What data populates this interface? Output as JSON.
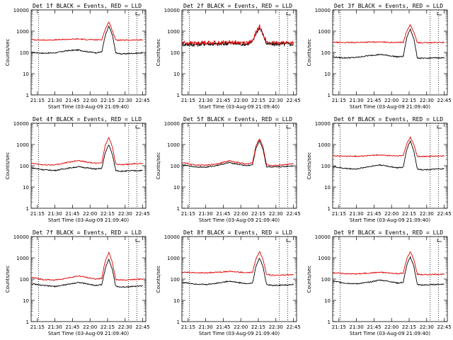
{
  "chart_data": [
    {
      "type": "line",
      "title": "Det 1f BLACK = Events, RED = LLD",
      "xlabel": "Start Time (03-Aug-09 21:09:40)",
      "ylabel": "Counts/sec",
      "yscale": "log",
      "ylim": [
        1,
        10000
      ],
      "x_ticks": [
        "21:15",
        "21:30",
        "21:45",
        "22:00",
        "22:15",
        "22:30",
        "22:45"
      ],
      "y_ticks": [
        "1",
        "10",
        "100",
        "1000",
        "10000"
      ],
      "x": [
        "21:10",
        "21:20",
        "21:30",
        "21:40",
        "21:50",
        "21:57",
        "22:05",
        "22:10",
        "22:13",
        "22:16",
        "22:19",
        "22:22",
        "22:27",
        "22:35",
        "22:45"
      ],
      "series": [
        {
          "name": "Events",
          "color": "#000000",
          "values": [
            100,
            92,
            95,
            120,
            130,
            110,
            96,
            105,
            600,
            1700,
            700,
            95,
            85,
            90,
            95
          ]
        },
        {
          "name": "LLD",
          "color": "#e00000",
          "values": [
            400,
            380,
            390,
            410,
            430,
            405,
            390,
            400,
            1200,
            2800,
            1100,
            380,
            375,
            380,
            390
          ]
        }
      ]
    },
    {
      "type": "line",
      "title": "Det 2f BLACK = Events, RED = LLD",
      "xlabel": "Start Time (03-Aug-09 21:09:40)",
      "ylabel": "Counts/sec",
      "yscale": "log",
      "ylim": [
        1,
        10000
      ],
      "x_ticks": [
        "21:15",
        "21:30",
        "21:45",
        "22:00",
        "22:15",
        "22:30",
        "22:45"
      ],
      "y_ticks": [
        "1",
        "10",
        "100",
        "1000",
        "10000"
      ],
      "x": [
        "21:10",
        "21:20",
        "21:30",
        "21:40",
        "21:50",
        "21:57",
        "22:05",
        "22:10",
        "22:13",
        "22:16",
        "22:19",
        "22:22",
        "22:27",
        "22:35",
        "22:45"
      ],
      "series": [
        {
          "name": "Events",
          "color": "#000000",
          "values": [
            250,
            230,
            260,
            240,
            270,
            255,
            245,
            300,
            800,
            1500,
            700,
            260,
            240,
            250,
            240
          ]
        },
        {
          "name": "LLD",
          "color": "#e00000",
          "values": [
            290,
            270,
            300,
            280,
            310,
            290,
            280,
            330,
            900,
            1700,
            800,
            290,
            270,
            290,
            280
          ]
        }
      ]
    },
    {
      "type": "line",
      "title": "Det 3f BLACK = Events, RED = LLD",
      "xlabel": "Start Time (03-Aug-09 21:09:40)",
      "ylabel": "Counts/sec",
      "yscale": "log",
      "ylim": [
        1,
        10000
      ],
      "x_ticks": [
        "21:15",
        "21:30",
        "21:45",
        "22:00",
        "22:15",
        "22:30",
        "22:45"
      ],
      "y_ticks": [
        "1",
        "10",
        "100",
        "1000",
        "10000"
      ],
      "x": [
        "21:10",
        "21:20",
        "21:30",
        "21:40",
        "21:50",
        "21:57",
        "22:05",
        "22:10",
        "22:13",
        "22:16",
        "22:19",
        "22:22",
        "22:27",
        "22:35",
        "22:45"
      ],
      "series": [
        {
          "name": "Events",
          "color": "#000000",
          "values": [
            60,
            55,
            58,
            70,
            80,
            72,
            62,
            65,
            500,
            1300,
            450,
            55,
            52,
            55,
            56
          ]
        },
        {
          "name": "LLD",
          "color": "#e00000",
          "values": [
            300,
            290,
            295,
            305,
            310,
            300,
            295,
            300,
            1000,
            2000,
            900,
            290,
            285,
            290,
            295
          ]
        }
      ]
    },
    {
      "type": "line",
      "title": "Det 4f BLACK = Events, RED = LLD",
      "xlabel": "Start Time (03-Aug-09 21:09:40)",
      "ylabel": "Counts/sec",
      "yscale": "log",
      "ylim": [
        1,
        10000
      ],
      "x_ticks": [
        "21:15",
        "21:30",
        "21:45",
        "22:00",
        "22:15",
        "22:30",
        "22:45"
      ],
      "y_ticks": [
        "1",
        "10",
        "100",
        "1000",
        "10000"
      ],
      "x": [
        "21:10",
        "21:20",
        "21:30",
        "21:40",
        "21:50",
        "21:57",
        "22:05",
        "22:10",
        "22:13",
        "22:16",
        "22:19",
        "22:22",
        "22:27",
        "22:35",
        "22:45"
      ],
      "series": [
        {
          "name": "Events",
          "color": "#000000",
          "values": [
            80,
            65,
            60,
            75,
            90,
            80,
            70,
            75,
            400,
            1000,
            350,
            60,
            55,
            58,
            60
          ]
        },
        {
          "name": "LLD",
          "color": "#e00000",
          "values": [
            130,
            110,
            110,
            140,
            180,
            150,
            130,
            140,
            900,
            2200,
            800,
            120,
            110,
            120,
            130
          ]
        }
      ]
    },
    {
      "type": "line",
      "title": "Det 5f BLACK = Events, RED = LLD",
      "xlabel": "Start Time (03-Aug-09 21:09:40)",
      "ylabel": "Counts/sec",
      "yscale": "log",
      "ylim": [
        1,
        10000
      ],
      "x_ticks": [
        "21:15",
        "21:30",
        "21:45",
        "22:00",
        "22:15",
        "22:30",
        "22:45"
      ],
      "y_ticks": [
        "1",
        "10",
        "100",
        "1000",
        "10000"
      ],
      "x": [
        "21:10",
        "21:20",
        "21:30",
        "21:40",
        "21:50",
        "21:57",
        "22:05",
        "22:10",
        "22:13",
        "22:16",
        "22:19",
        "22:22",
        "22:27",
        "22:35",
        "22:45"
      ],
      "series": [
        {
          "name": "Events",
          "color": "#000000",
          "values": [
            110,
            90,
            85,
            105,
            140,
            120,
            100,
            110,
            700,
            1500,
            600,
            90,
            85,
            90,
            100
          ]
        },
        {
          "name": "LLD",
          "color": "#e00000",
          "values": [
            140,
            110,
            105,
            125,
            170,
            145,
            120,
            135,
            900,
            1900,
            800,
            110,
            100,
            110,
            125
          ]
        }
      ]
    },
    {
      "type": "line",
      "title": "Det 6f BLACK = Events, RED = LLD",
      "xlabel": "Start Time (03-Aug-09 21:09:40)",
      "ylabel": "Counts/sec",
      "yscale": "log",
      "ylim": [
        1,
        10000
      ],
      "x_ticks": [
        "21:15",
        "21:30",
        "21:45",
        "22:00",
        "22:15",
        "22:30",
        "22:45"
      ],
      "y_ticks": [
        "1",
        "10",
        "100",
        "1000",
        "10000"
      ],
      "x": [
        "21:10",
        "21:20",
        "21:30",
        "21:40",
        "21:50",
        "21:57",
        "22:05",
        "22:10",
        "22:13",
        "22:16",
        "22:19",
        "22:22",
        "22:27",
        "22:35",
        "22:45"
      ],
      "series": [
        {
          "name": "Events",
          "color": "#000000",
          "values": [
            90,
            75,
            70,
            90,
            110,
            95,
            80,
            85,
            600,
            1500,
            500,
            70,
            65,
            68,
            72
          ]
        },
        {
          "name": "LLD",
          "color": "#e00000",
          "values": [
            300,
            280,
            280,
            300,
            320,
            300,
            290,
            300,
            1100,
            2200,
            1000,
            280,
            270,
            280,
            290
          ]
        }
      ]
    },
    {
      "type": "line",
      "title": "Det 7f BLACK = Events, RED = LLD",
      "xlabel": "Start Time (03-Aug-09 21:09:40)",
      "ylabel": "Counts/sec",
      "yscale": "log",
      "ylim": [
        1,
        10000
      ],
      "x_ticks": [
        "21:15",
        "21:30",
        "21:45",
        "22:00",
        "22:15",
        "22:30",
        "22:45"
      ],
      "y_ticks": [
        "1",
        "10",
        "100",
        "1000",
        "10000"
      ],
      "x": [
        "21:10",
        "21:20",
        "21:30",
        "21:40",
        "21:50",
        "21:57",
        "22:05",
        "22:10",
        "22:13",
        "22:16",
        "22:19",
        "22:22",
        "22:27",
        "22:35",
        "22:45"
      ],
      "series": [
        {
          "name": "Events",
          "color": "#000000",
          "values": [
            60,
            50,
            45,
            55,
            70,
            60,
            50,
            55,
            300,
            900,
            300,
            45,
            42,
            45,
            48
          ]
        },
        {
          "name": "LLD",
          "color": "#e00000",
          "values": [
            120,
            95,
            90,
            110,
            140,
            120,
            100,
            110,
            700,
            1800,
            650,
            95,
            90,
            95,
            100
          ]
        }
      ]
    },
    {
      "type": "line",
      "title": "Det 8f BLACK = Events, RED = LLD",
      "xlabel": "Start Time (03-Aug-09 21:09:40)",
      "ylabel": "Counts/sec",
      "yscale": "log",
      "ylim": [
        1,
        10000
      ],
      "x_ticks": [
        "21:15",
        "21:30",
        "21:45",
        "22:00",
        "22:15",
        "22:30",
        "22:45"
      ],
      "y_ticks": [
        "1",
        "10",
        "100",
        "1000",
        "10000"
      ],
      "x": [
        "21:10",
        "21:20",
        "21:30",
        "21:40",
        "21:50",
        "21:57",
        "22:05",
        "22:10",
        "22:13",
        "22:16",
        "22:19",
        "22:22",
        "22:27",
        "22:35",
        "22:45"
      ],
      "series": [
        {
          "name": "Events",
          "color": "#000000",
          "values": [
            70,
            60,
            55,
            65,
            80,
            70,
            60,
            65,
            400,
            1000,
            380,
            55,
            50,
            52,
            55
          ]
        },
        {
          "name": "LLD",
          "color": "#e00000",
          "values": [
            210,
            200,
            195,
            210,
            230,
            215,
            200,
            205,
            900,
            2000,
            850,
            170,
            150,
            155,
            160
          ]
        }
      ]
    },
    {
      "type": "line",
      "title": "Det 9f BLACK = Events, RED = LLD",
      "xlabel": "Start Time (03-Aug-09 21:09:40)",
      "ylabel": "Counts/sec",
      "yscale": "log",
      "ylim": [
        1,
        10000
      ],
      "x_ticks": [
        "21:15",
        "21:30",
        "21:45",
        "22:00",
        "22:15",
        "22:30",
        "22:45"
      ],
      "y_ticks": [
        "1",
        "10",
        "100",
        "1000",
        "10000"
      ],
      "x": [
        "21:10",
        "21:20",
        "21:30",
        "21:40",
        "21:50",
        "21:57",
        "22:05",
        "22:10",
        "22:13",
        "22:16",
        "22:19",
        "22:22",
        "22:27",
        "22:35",
        "22:45"
      ],
      "series": [
        {
          "name": "Events",
          "color": "#000000",
          "values": [
            80,
            65,
            60,
            70,
            90,
            80,
            65,
            70,
            450,
            1100,
            420,
            55,
            52,
            55,
            58
          ]
        },
        {
          "name": "LLD",
          "color": "#e00000",
          "values": [
            200,
            180,
            175,
            190,
            210,
            195,
            180,
            190,
            900,
            2000,
            850,
            170,
            160,
            165,
            170
          ]
        }
      ]
    }
  ]
}
